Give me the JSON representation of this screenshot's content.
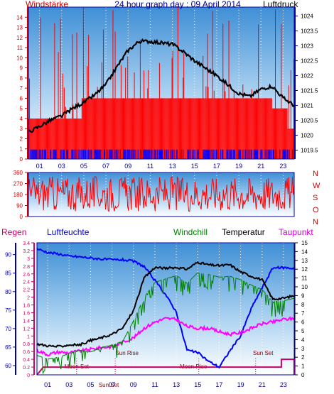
{
  "header": {
    "wind_label": "Windstärke",
    "title": "24 hour graph day : 09 April 2014",
    "pressure_label": "Luftdruck"
  },
  "bottom_header": {
    "rain_label": "Regen",
    "humidity_label": "Luftfeuchte",
    "windchill_label": "Windchill",
    "temperature_label": "Temperatur",
    "dewpoint_label": "Taupunkt"
  },
  "direction_labels": [
    "N",
    "W",
    "S",
    "O",
    "N"
  ],
  "annotations": {
    "moon_set_1": "Moon Set",
    "sun_rise": "Sun Rise",
    "sun_set_bottom": "Sun Set",
    "moon_rise": "Moon Rise",
    "sun_set": "Sun Set"
  },
  "colors": {
    "wind": "#ff0000",
    "wind_gust_calm": "#0000ff",
    "pressure": "#000000",
    "humidity": "#0000ff",
    "temperature": "#000000",
    "windchill": "#008000",
    "dewpoint": "#ff00ff",
    "rain": "#cc0066",
    "axis_red": "#cc0000",
    "axis_blue": "#0000aa"
  },
  "chart_data": [
    {
      "type": "bar",
      "name": "wind-pressure",
      "x_ticks": [
        "01",
        "03",
        "05",
        "07",
        "09",
        "11",
        "13",
        "15",
        "17",
        "19",
        "21",
        "23"
      ],
      "left_axis": {
        "ticks": [
          "0",
          "1",
          "2",
          "3",
          "4",
          "5",
          "6",
          "7",
          "8",
          "9",
          "10",
          "11",
          "12",
          "13",
          "14"
        ],
        "ylim": [
          0,
          15
        ]
      },
      "right_axis": {
        "ticks": [
          "1019.5",
          "1020",
          "1020.5",
          "1021",
          "1021.5",
          "1022",
          "1022.5",
          "1023",
          "1023.5",
          "1024"
        ],
        "ylim": [
          1019.2,
          1024.3
        ]
      },
      "wind_level_hours": [
        0,
        4.8,
        22,
        23.4
      ],
      "wind_level_values": [
        4,
        6,
        5,
        3
      ],
      "calm_level": 1,
      "pressure_hours": [
        0,
        1,
        2,
        3,
        4,
        5,
        6,
        7,
        8,
        9,
        10,
        11,
        12,
        13,
        14,
        15,
        16,
        17,
        18,
        19,
        20,
        21,
        22,
        23,
        24
      ],
      "pressure_values": [
        1020.1,
        1020.3,
        1020.5,
        1020.65,
        1020.9,
        1021.1,
        1021.35,
        1021.7,
        1022.3,
        1022.85,
        1023.15,
        1023.15,
        1023.1,
        1023.05,
        1022.8,
        1022.5,
        1022.25,
        1022.0,
        1021.7,
        1021.4,
        1021.3,
        1021.55,
        1021.65,
        1021.25,
        1021.0
      ]
    },
    {
      "type": "line",
      "name": "wind-direction",
      "y_ticks": [
        "0",
        "90",
        "180",
        "270",
        "360"
      ],
      "ylim": [
        0,
        360
      ],
      "band": [
        40,
        330
      ]
    },
    {
      "type": "line",
      "name": "humidity-temperature-rain",
      "x_ticks": [
        "01",
        "03",
        "05",
        "07",
        "09",
        "11",
        "13",
        "15",
        "17",
        "19",
        "21",
        "23"
      ],
      "rain_axis": {
        "ticks": [
          "0",
          "0.2",
          "0.4",
          "0.6",
          "0.8",
          "1",
          "1.2",
          "1.4",
          "1.6",
          "1.8",
          "2",
          "2.2",
          "2.4",
          "2.6",
          "2.8",
          "3",
          "3.2",
          "3.4"
        ],
        "ylim": [
          0,
          3.4
        ]
      },
      "humidity_axis": {
        "ticks": [
          "60",
          "65",
          "70",
          "75",
          "80",
          "85",
          "90"
        ],
        "ylim": [
          57.5,
          93.2
        ]
      },
      "temperature_axis": {
        "ticks": [
          "0",
          "1",
          "2",
          "3",
          "4",
          "5",
          "6",
          "7",
          "8",
          "9",
          "10",
          "11",
          "12",
          "13",
          "14",
          "15"
        ],
        "ylim": [
          0,
          15
        ]
      },
      "hours": [
        0,
        1,
        2,
        3,
        4,
        5,
        6,
        7,
        8,
        9,
        10,
        11,
        12,
        13,
        14,
        15,
        16,
        17,
        18,
        19,
        20,
        21,
        22,
        23,
        24
      ],
      "temperature": [
        3.5,
        3.3,
        3.2,
        3.4,
        3.4,
        3.9,
        4.2,
        4.6,
        5.3,
        7.3,
        11.0,
        12.2,
        12.1,
        12.2,
        12.0,
        12.8,
        12.5,
        12.4,
        12.5,
        11.7,
        11.2,
        10.8,
        8.6,
        8.7,
        9.0
      ],
      "windchill": [
        2.2,
        1.8,
        2.0,
        2.4,
        2.8,
        2.6,
        3.1,
        3.4,
        3.8,
        6.1,
        8.8,
        10.5,
        10.9,
        11.3,
        10.4,
        11.6,
        11.4,
        11.1,
        11.2,
        10.8,
        10.2,
        9.7,
        8.3,
        8.4,
        8.7
      ],
      "dewpoint": [
        2.8,
        2.3,
        2.6,
        2.5,
        2.7,
        2.9,
        3.1,
        3.2,
        3.7,
        4.2,
        5.3,
        6.0,
        6.4,
        6.3,
        5.5,
        5.3,
        5.3,
        4.9,
        4.6,
        4.8,
        5.3,
        5.8,
        6.0,
        6.3,
        6.4
      ],
      "humidity": [
        91.6,
        90.6,
        90.2,
        89.6,
        89.4,
        89.1,
        88.8,
        88.6,
        88.6,
        88.2,
        86.8,
        83.0,
        79.2,
        74.5,
        64.2,
        63.5,
        61.2,
        59.6,
        64.0,
        68.0,
        75.5,
        81.0,
        86.4,
        86.5,
        86.3
      ],
      "rain_hours": [
        0,
        0.6,
        19.8,
        22.8,
        22.8,
        24
      ],
      "rain_values": [
        0,
        0.2,
        0.2,
        0.2,
        0.4,
        0.4
      ],
      "events": [
        {
          "label_key": "moon_set_1",
          "hour": 3.7
        },
        {
          "label_key": "sun_rise",
          "hour": 7.3
        },
        {
          "label_key": "moon_rise",
          "hour": 15.1
        },
        {
          "label_key": "sun_set",
          "hour": 20.4
        }
      ]
    }
  ]
}
